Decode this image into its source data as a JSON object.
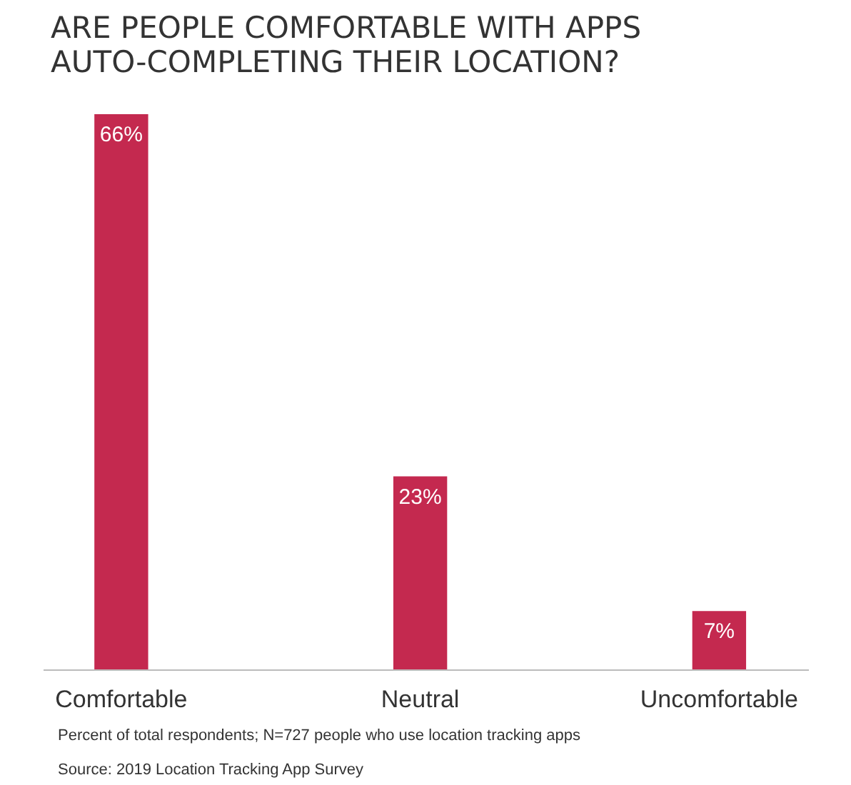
{
  "chart_data": {
    "type": "bar",
    "title": "ARE PEOPLE COMFORTABLE WITH APPS AUTO-COMPLETING THEIR LOCATION?",
    "categories": [
      "Comfortable",
      "Neutral",
      "Uncomfortable"
    ],
    "values": [
      66,
      23,
      7
    ],
    "value_labels": [
      "66%",
      "23%",
      "7%"
    ],
    "color": "#c4294f",
    "annotations": [
      "Percent of total respondents; N=727 people who use location tracking apps",
      "Source: 2019 Location Tracking App Survey"
    ],
    "grid": false
  }
}
